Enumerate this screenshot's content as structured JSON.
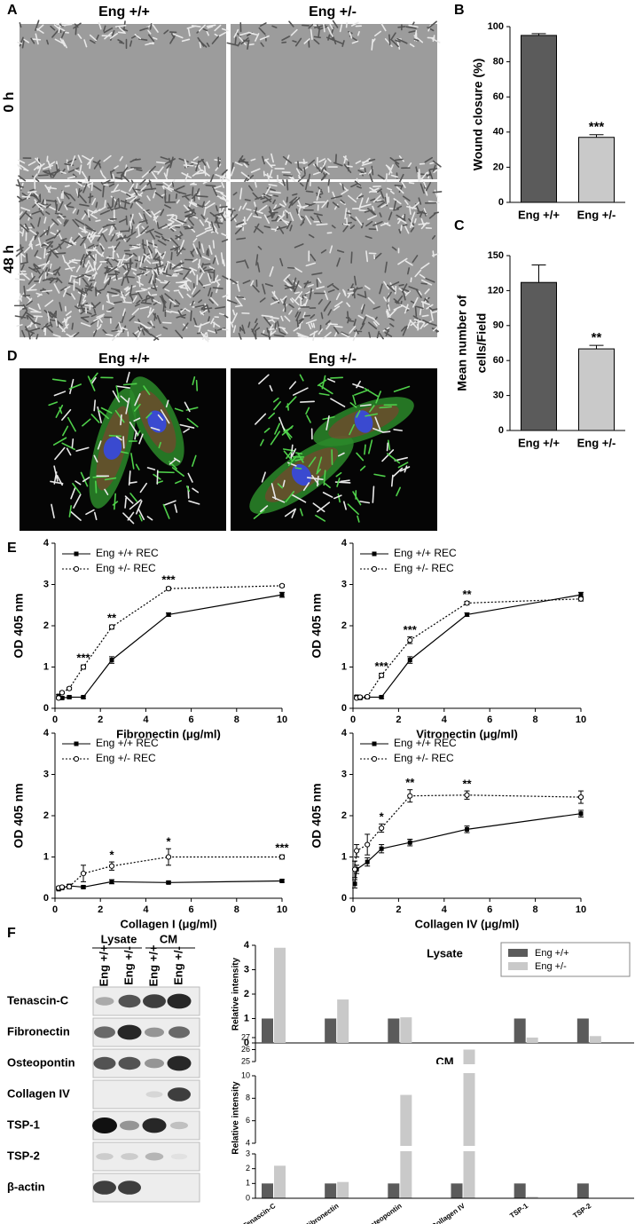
{
  "panel_labels": [
    "A",
    "B",
    "C",
    "D",
    "E",
    "F"
  ],
  "panel_a": {
    "columns": [
      "Eng +/+",
      "Eng +/-"
    ],
    "rows": [
      "0 h",
      "48 h"
    ]
  },
  "panel_d": {
    "columns": [
      "Eng +/+",
      "Eng +/-"
    ]
  },
  "panel_f_blot": {
    "groups": [
      "Lysate",
      "CM"
    ],
    "lanes": [
      "Eng +/+",
      "Eng +/-",
      "Eng +/+",
      "Eng +/-"
    ],
    "rows": [
      "Tenascin-C",
      "Fibronectin",
      "Osteopontin",
      "Collagen IV",
      "TSP-1",
      "TSP-2",
      "β-actin"
    ]
  },
  "chart_data": [
    {
      "type": "bar",
      "ylabel": "Wound closure (%)",
      "categories": [
        "Eng +/+",
        "Eng +/-"
      ],
      "values": [
        95,
        37
      ],
      "errors": [
        1,
        1.5
      ],
      "significance": [
        null,
        "***"
      ],
      "colors": [
        "#5b5b5b",
        "#c9c9c9"
      ],
      "ylim": [
        0,
        100
      ],
      "yticks": [
        0,
        20,
        40,
        60,
        80,
        100
      ]
    },
    {
      "type": "bar",
      "ylabel": [
        "Mean number of",
        "cells/Field"
      ],
      "categories": [
        "Eng +/+",
        "Eng +/-"
      ],
      "values": [
        127,
        70
      ],
      "errors": [
        15,
        3
      ],
      "significance": [
        null,
        "**"
      ],
      "colors": [
        "#5b5b5b",
        "#c9c9c9"
      ],
      "ylim": [
        0,
        150
      ],
      "yticks": [
        0,
        30,
        60,
        90,
        120,
        150
      ]
    },
    {
      "type": "line",
      "xlabel": "Fibronectin (μg/ml)",
      "ylabel": "OD 405 nm",
      "x": [
        0.16,
        0.31,
        0.63,
        1.25,
        2.5,
        5,
        10
      ],
      "xlim": [
        0,
        10
      ],
      "xticks": [
        0,
        2,
        4,
        6,
        8,
        10
      ],
      "ylim": [
        0,
        4
      ],
      "yticks": [
        0,
        1,
        2,
        3,
        4
      ],
      "legend": "upper left",
      "series": [
        {
          "name": "Eng +/+ REC",
          "color": "#000000",
          "line": "solid",
          "marker": "filled-square",
          "values": [
            0.3,
            0.25,
            0.27,
            0.27,
            1.17,
            2.27,
            2.75
          ],
          "errors": [
            0.03,
            0.03,
            0.03,
            0.03,
            0.08,
            0.04,
            0.06
          ]
        },
        {
          "name": "Eng +/- REC",
          "color": "#000000",
          "line": "dotted",
          "marker": "open-circle",
          "values": [
            0.25,
            0.38,
            0.48,
            1.0,
            1.97,
            2.9,
            2.97
          ],
          "errors": [
            0.03,
            0.03,
            0.03,
            0.05,
            0.05,
            0.04,
            0.03
          ]
        }
      ],
      "significance": [
        null,
        null,
        null,
        "***",
        "**",
        "***",
        null
      ]
    },
    {
      "type": "line",
      "xlabel": "Vitronectin (μg/ml)",
      "ylabel": "OD 405 nm",
      "x": [
        0.16,
        0.31,
        0.63,
        1.25,
        2.5,
        5,
        10
      ],
      "xlim": [
        0,
        10
      ],
      "xticks": [
        0,
        2,
        4,
        6,
        8,
        10
      ],
      "ylim": [
        0,
        4
      ],
      "yticks": [
        0,
        1,
        2,
        3,
        4
      ],
      "legend": "upper left",
      "series": [
        {
          "name": "Eng +/+ REC",
          "color": "#000000",
          "line": "solid",
          "marker": "filled-square",
          "values": [
            0.28,
            0.25,
            0.27,
            0.27,
            1.17,
            2.27,
            2.75
          ],
          "errors": [
            0.03,
            0.03,
            0.03,
            0.03,
            0.08,
            0.04,
            0.06
          ]
        },
        {
          "name": "Eng +/- REC",
          "color": "#000000",
          "line": "dotted",
          "marker": "open-circle",
          "values": [
            0.25,
            0.27,
            0.28,
            0.8,
            1.65,
            2.55,
            2.65
          ],
          "errors": [
            0.03,
            0.03,
            0.03,
            0.05,
            0.08,
            0.04,
            0.05
          ]
        }
      ],
      "significance": [
        null,
        null,
        null,
        "***",
        "***",
        "**",
        null
      ]
    },
    {
      "type": "line",
      "xlabel": "Collagen I (μg/ml)",
      "ylabel": "OD 405 nm",
      "x": [
        0.16,
        0.31,
        0.63,
        1.25,
        2.5,
        5,
        10
      ],
      "xlim": [
        0,
        10
      ],
      "xticks": [
        0,
        2,
        4,
        6,
        8,
        10
      ],
      "ylim": [
        0,
        4
      ],
      "yticks": [
        0,
        1,
        2,
        3,
        4
      ],
      "legend": "upper left",
      "series": [
        {
          "name": "Eng +/+ REC",
          "color": "#000000",
          "line": "solid",
          "marker": "filled-square",
          "values": [
            0.22,
            0.25,
            0.3,
            0.27,
            0.4,
            0.38,
            0.42
          ],
          "errors": [
            0.02,
            0.02,
            0.03,
            0.03,
            0.05,
            0.03,
            0.03
          ]
        },
        {
          "name": "Eng +/- REC",
          "color": "#000000",
          "line": "dotted",
          "marker": "open-circle",
          "values": [
            0.25,
            0.27,
            0.28,
            0.6,
            0.78,
            1.0,
            1.0
          ],
          "errors": [
            0.03,
            0.03,
            0.05,
            0.2,
            0.1,
            0.2,
            0.05
          ]
        }
      ],
      "significance": [
        null,
        null,
        null,
        null,
        "*",
        "*",
        "***"
      ]
    },
    {
      "type": "line",
      "xlabel": "Collagen IV (μg/ml)",
      "ylabel": "OD 405 nm",
      "x": [
        0.08,
        0.16,
        0.63,
        1.25,
        2.5,
        5,
        10
      ],
      "xlim": [
        0,
        10
      ],
      "xticks": [
        0,
        2,
        4,
        6,
        8,
        10
      ],
      "ylim": [
        0,
        4
      ],
      "yticks": [
        0,
        1,
        2,
        3,
        4
      ],
      "legend": "upper left",
      "series": [
        {
          "name": "Eng +/+ REC",
          "color": "#000000",
          "line": "solid",
          "marker": "filled-square",
          "values": [
            0.35,
            0.7,
            0.88,
            1.2,
            1.35,
            1.67,
            2.05
          ],
          "errors": [
            0.1,
            0.1,
            0.1,
            0.1,
            0.08,
            0.08,
            0.08
          ]
        },
        {
          "name": "Eng +/- REC",
          "color": "#000000",
          "line": "dotted",
          "marker": "open-circle",
          "values": [
            0.7,
            1.15,
            1.3,
            1.7,
            2.48,
            2.5,
            2.45
          ],
          "errors": [
            0.2,
            0.15,
            0.25,
            0.1,
            0.15,
            0.1,
            0.15
          ]
        }
      ],
      "significance": [
        null,
        null,
        null,
        "*",
        "**",
        "**",
        null
      ]
    },
    {
      "type": "bar",
      "title": "Lysate",
      "ylabel": "Relative intensity",
      "legend": "upper right",
      "ylim": [
        0,
        4
      ],
      "yticks": [
        0,
        1,
        2,
        3,
        4
      ],
      "series": [
        {
          "name": "Eng +/+",
          "color": "#5b5b5b",
          "values": [
            1,
            1,
            1,
            null,
            1,
            1
          ]
        },
        {
          "name": "Eng +/-",
          "color": "#c9c9c9",
          "values": [
            3.9,
            1.78,
            1.05,
            null,
            0.22,
            0.28
          ]
        }
      ]
    },
    {
      "type": "broken-bar",
      "title": "CM",
      "ylabel": "Relative intensity",
      "categories": [
        "Tenascin-C",
        "Fibronectin",
        "Osteopontin",
        "Collagen IV",
        "TSP-1",
        "TSP-2"
      ],
      "ysegments": [
        {
          "lim": [
            0,
            3
          ],
          "ticks": [
            0,
            1,
            2,
            3
          ]
        },
        {
          "lim": [
            4,
            10
          ],
          "ticks": [
            4,
            6,
            8,
            10
          ]
        },
        {
          "lim": [
            25,
            27
          ],
          "ticks": [
            25,
            26,
            27
          ]
        }
      ],
      "series": [
        {
          "color": "#5b5b5b",
          "values": [
            1,
            1,
            1,
            1,
            1,
            1
          ]
        },
        {
          "color": "#c9c9c9",
          "values": [
            2.2,
            1.1,
            8.3,
            26,
            0.1,
            null
          ]
        }
      ]
    }
  ]
}
